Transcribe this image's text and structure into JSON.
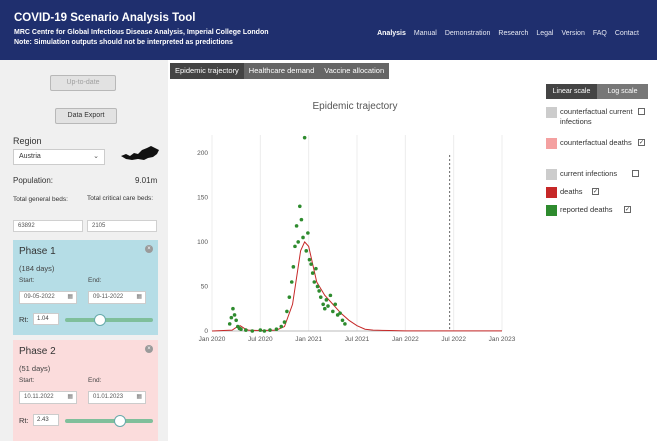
{
  "header": {
    "title": "COVID-19 Scenario Analysis Tool",
    "subtitle": "MRC Centre for Global Infectious Disease Analysis, Imperial College London",
    "note": "Note: Simulation outputs should not be interpreted as predictions",
    "nav": [
      "Analysis",
      "Manual",
      "Demonstration",
      "Research",
      "Legal",
      "Version",
      "FAQ",
      "Contact"
    ]
  },
  "sidebar": {
    "uptodate_label": "Up-to-date",
    "export_label": "Data Export",
    "region_label": "Region",
    "region_value": "Austria",
    "population_label": "Population:",
    "population_value": "9.01m",
    "general_beds_label": "Total general beds:",
    "critical_beds_label": "Total critical care beds:",
    "general_beds_value": "63892",
    "critical_beds_value": "2105"
  },
  "phases": [
    {
      "title": "Phase 1",
      "days": "(184 days)",
      "start_label": "Start:",
      "end_label": "End:",
      "start": "09-05-2022",
      "end": "09-11-2022",
      "rt_label": "Rt:",
      "rt": "1.04",
      "slider_fraction": 0.4
    },
    {
      "title": "Phase 2",
      "days": "(51 days)",
      "start_label": "Start:",
      "end_label": "End:",
      "start": "10.11.2022",
      "end": "01.01.2023",
      "rt_label": "Rt:",
      "rt": "2.43",
      "slider_fraction": 0.62
    }
  ],
  "tabs": [
    "Epidemic trajectory",
    "Healthcare demand",
    "Vaccine allocation"
  ],
  "scale": {
    "linear": "Linear scale",
    "log": "Log scale"
  },
  "legend": [
    {
      "label": "counterfactual current infections",
      "color": "#cccccc",
      "checked": false
    },
    {
      "label": "counterfactual deaths",
      "color": "#f4a0a0",
      "checked": true
    },
    {
      "label": "current infections",
      "color": "#cccccc",
      "checked": false
    },
    {
      "label": "deaths",
      "color": "#c62828",
      "checked": true
    },
    {
      "label": "reported deaths",
      "color": "#2e8b2e",
      "checked": true
    }
  ],
  "chart_data": {
    "type": "scatter",
    "title": "Epidemic trajectory",
    "x_ticks": [
      "Jan 2020",
      "Jul 2020",
      "Jan 2021",
      "Jul 2021",
      "Jan 2022",
      "Jul 2022",
      "Jan 2023"
    ],
    "y_ticks": [
      "0",
      "50",
      "100",
      "150",
      "200"
    ],
    "ylim": [
      0,
      220
    ],
    "xlim_months": [
      0,
      36
    ],
    "today_marker_month": 29.5,
    "deaths_line": [
      [
        0,
        0
      ],
      [
        2.5,
        1
      ],
      [
        3,
        4
      ],
      [
        3.5,
        6
      ],
      [
        4,
        3
      ],
      [
        4.5,
        1
      ],
      [
        6,
        0.5
      ],
      [
        8,
        1
      ],
      [
        9,
        5
      ],
      [
        10,
        30
      ],
      [
        10.5,
        60
      ],
      [
        11,
        90
      ],
      [
        11.5,
        100
      ],
      [
        12,
        95
      ],
      [
        12.5,
        75
      ],
      [
        13,
        55
      ],
      [
        14,
        40
      ],
      [
        15,
        30
      ],
      [
        16,
        20
      ],
      [
        17,
        12
      ],
      [
        18,
        6
      ],
      [
        19,
        2
      ],
      [
        20,
        1
      ],
      [
        22,
        0.5
      ],
      [
        24,
        0.2
      ],
      [
        30,
        0.1
      ],
      [
        36,
        0.1
      ]
    ],
    "reported_deaths": [
      [
        2.2,
        8
      ],
      [
        2.4,
        15
      ],
      [
        2.6,
        25
      ],
      [
        2.8,
        18
      ],
      [
        3.0,
        12
      ],
      [
        3.2,
        5
      ],
      [
        3.4,
        3
      ],
      [
        3.6,
        2
      ],
      [
        4.2,
        1
      ],
      [
        5,
        0
      ],
      [
        6,
        1
      ],
      [
        6.5,
        0
      ],
      [
        7.2,
        1
      ],
      [
        8,
        2
      ],
      [
        8.6,
        5
      ],
      [
        9,
        10
      ],
      [
        9.3,
        22
      ],
      [
        9.6,
        38
      ],
      [
        9.9,
        55
      ],
      [
        10.1,
        72
      ],
      [
        10.3,
        95
      ],
      [
        10.5,
        118
      ],
      [
        10.7,
        100
      ],
      [
        10.9,
        140
      ],
      [
        11.1,
        125
      ],
      [
        11.3,
        105
      ],
      [
        11.5,
        217
      ],
      [
        11.7,
        90
      ],
      [
        11.9,
        110
      ],
      [
        12.1,
        80
      ],
      [
        12.3,
        75
      ],
      [
        12.5,
        65
      ],
      [
        12.7,
        55
      ],
      [
        12.9,
        70
      ],
      [
        13.1,
        50
      ],
      [
        13.3,
        45
      ],
      [
        13.5,
        38
      ],
      [
        13.8,
        30
      ],
      [
        14.0,
        25
      ],
      [
        14.2,
        35
      ],
      [
        14.4,
        28
      ],
      [
        14.7,
        40
      ],
      [
        15.0,
        22
      ],
      [
        15.3,
        30
      ],
      [
        15.6,
        18
      ],
      [
        15.9,
        20
      ],
      [
        16.2,
        12
      ],
      [
        16.5,
        8
      ]
    ]
  }
}
